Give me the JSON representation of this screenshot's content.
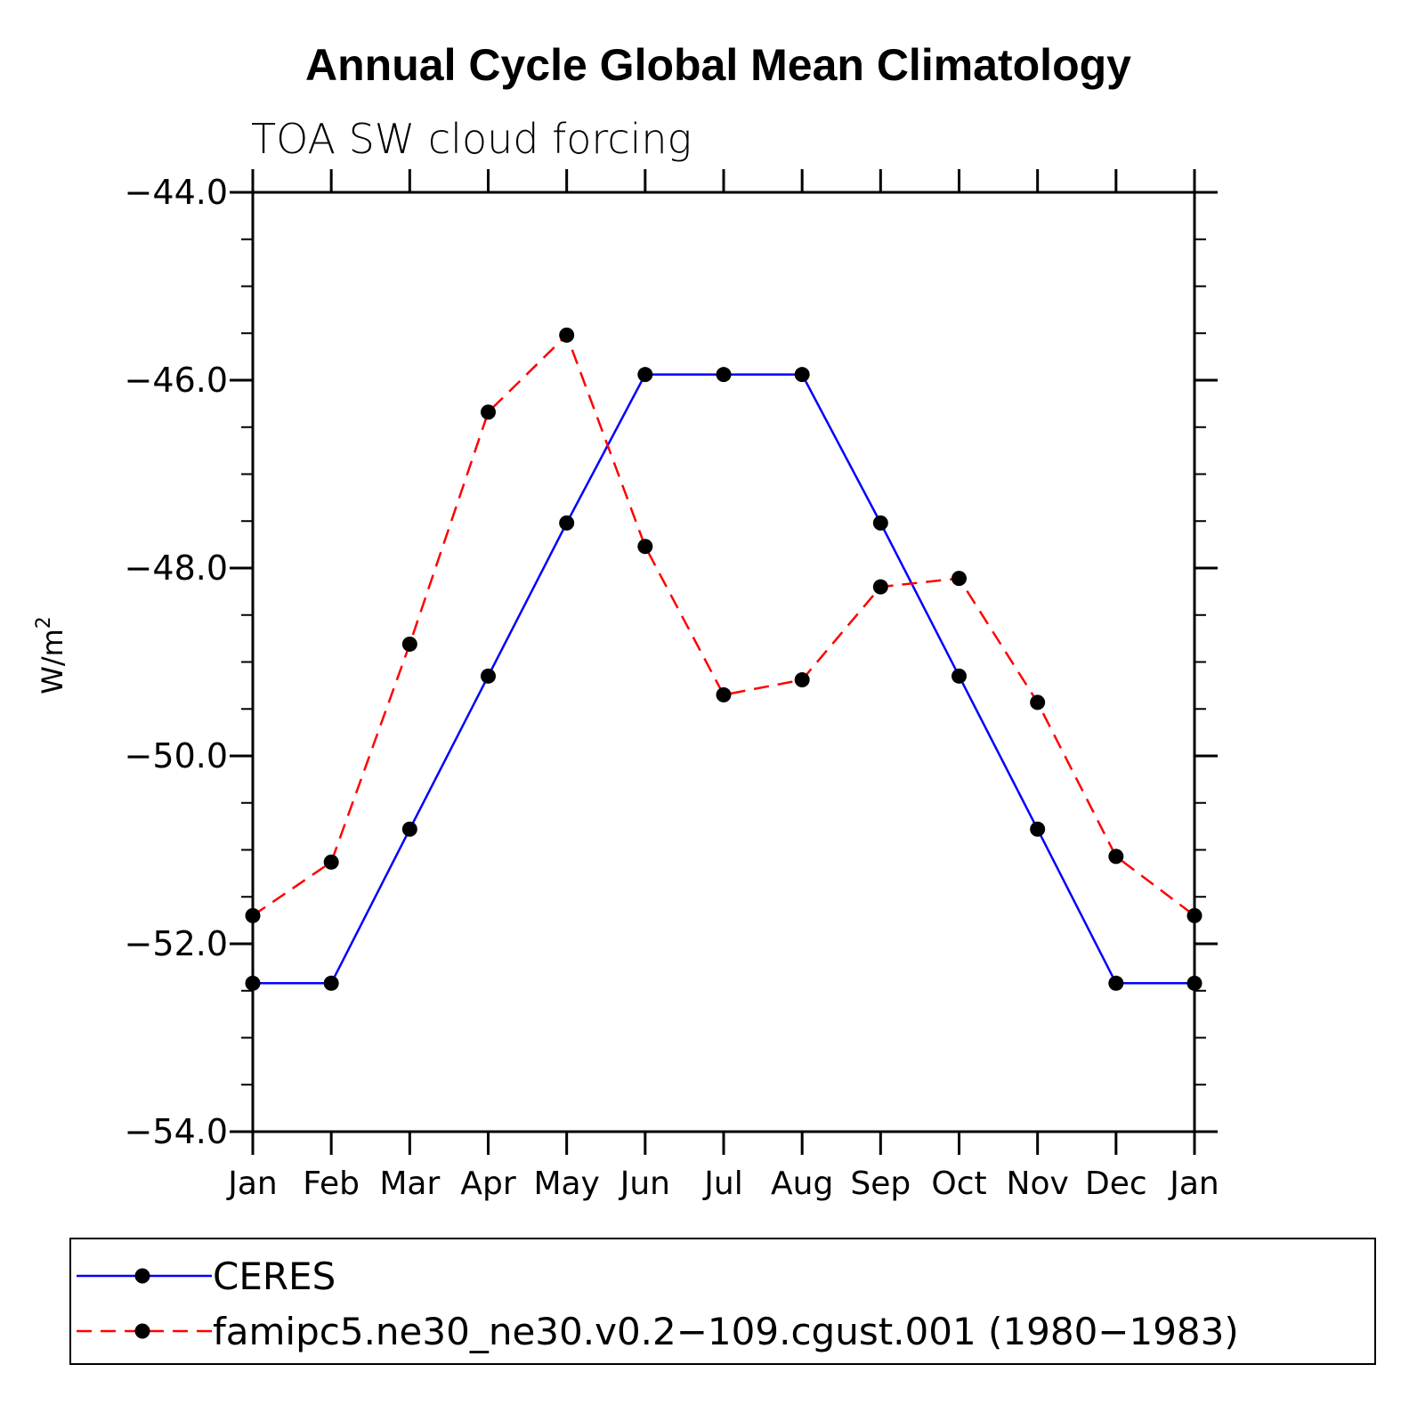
{
  "chart_data": {
    "type": "line",
    "title": "Annual Cycle Global Mean Climatology",
    "subtitle": "TOA SW cloud forcing",
    "ylabel": "W/m",
    "ylabel_superscript": "2",
    "xlabel": "",
    "ylim": [
      -54.0,
      -44.0
    ],
    "yticks": [
      -44.0,
      -46.0,
      -48.0,
      -50.0,
      -52.0,
      -54.0
    ],
    "ytick_labels": [
      "−44.0",
      "−46.0",
      "−48.0",
      "−50.0",
      "−52.0",
      "−54.0"
    ],
    "categories": [
      "Jan",
      "Feb",
      "Mar",
      "Apr",
      "May",
      "Jun",
      "Jul",
      "Aug",
      "Sep",
      "Oct",
      "Nov",
      "Dec",
      "Jan"
    ],
    "grid": false,
    "legend_position": "bottom",
    "series": [
      {
        "name": "CERES",
        "color": "#0000ff",
        "dash": "solid",
        "marker": "filled-circle",
        "values": [
          -52.42,
          -52.42,
          -50.78,
          -49.15,
          -47.52,
          -45.94,
          -45.94,
          -45.94,
          -47.52,
          -49.15,
          -50.78,
          -52.42,
          -52.42
        ]
      },
      {
        "name": "famipc5.ne30_ne30.v0.2−109.cgust.001 (1980−1983)",
        "color": "#ff0000",
        "dash": "dashed",
        "marker": "filled-circle",
        "values": [
          -51.7,
          -51.13,
          -48.81,
          -46.34,
          -45.52,
          -47.77,
          -49.35,
          -49.19,
          -48.2,
          -48.11,
          -49.43,
          -51.07,
          -51.7
        ]
      }
    ]
  }
}
